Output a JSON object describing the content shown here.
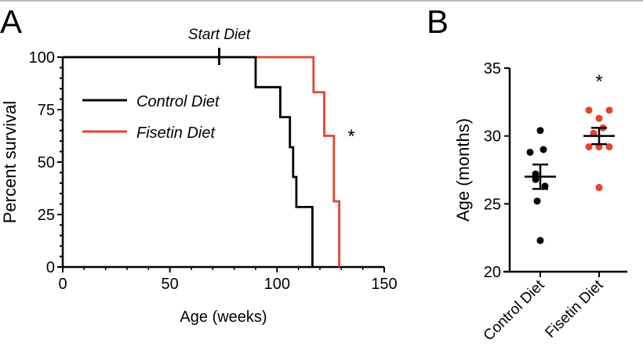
{
  "colors": {
    "control": "#000000",
    "fisetin": "#e8412e"
  },
  "chart_data": [
    {
      "panel": "A",
      "type": "line",
      "step": true,
      "xlabel": "Age (weeks)",
      "ylabel": "Percent survival",
      "xlim": [
        0,
        150
      ],
      "ylim": [
        0,
        100
      ],
      "xticks": [
        "0",
        "50",
        "100",
        "150"
      ],
      "yticks": [
        "0",
        "25",
        "50",
        "75",
        "100"
      ],
      "annotation": {
        "text": "Start Diet",
        "x": 73
      },
      "significance": "*",
      "legend": "top-left",
      "series": [
        {
          "name": "Control Diet",
          "color": "#000000",
          "x": [
            0,
            90,
            101.5,
            106,
            107.5,
            109,
            116.5
          ],
          "y": [
            100,
            85.7,
            71.4,
            57.1,
            42.9,
            28.6,
            0
          ]
        },
        {
          "name": "Fisetin Diet",
          "color": "#e8412e",
          "x": [
            0,
            117,
            122,
            126.5,
            129
          ],
          "y": [
            100,
            83.3,
            62.5,
            31.3,
            0
          ]
        }
      ]
    },
    {
      "panel": "B",
      "type": "scatter",
      "ylabel": "Age (months)",
      "ylim": [
        20,
        35
      ],
      "yticks": [
        "20",
        "25",
        "30",
        "35"
      ],
      "categories": [
        "Control Diet",
        "Fisetin Diet"
      ],
      "significance": "*",
      "series": [
        {
          "category": "Control Diet",
          "color": "#000000",
          "values": [
            30.4,
            28.8,
            29.0,
            27.2,
            26.3,
            26.8,
            25.2,
            22.3
          ],
          "mean": 27.0,
          "sem": 0.9
        },
        {
          "category": "Fisetin Diet",
          "color": "#e8412e",
          "values": [
            31.9,
            31.9,
            31.3,
            30.6,
            30.2,
            29.2,
            29.2,
            29.2,
            26.2
          ],
          "mean": 30.0,
          "sem": 0.6
        }
      ]
    }
  ]
}
